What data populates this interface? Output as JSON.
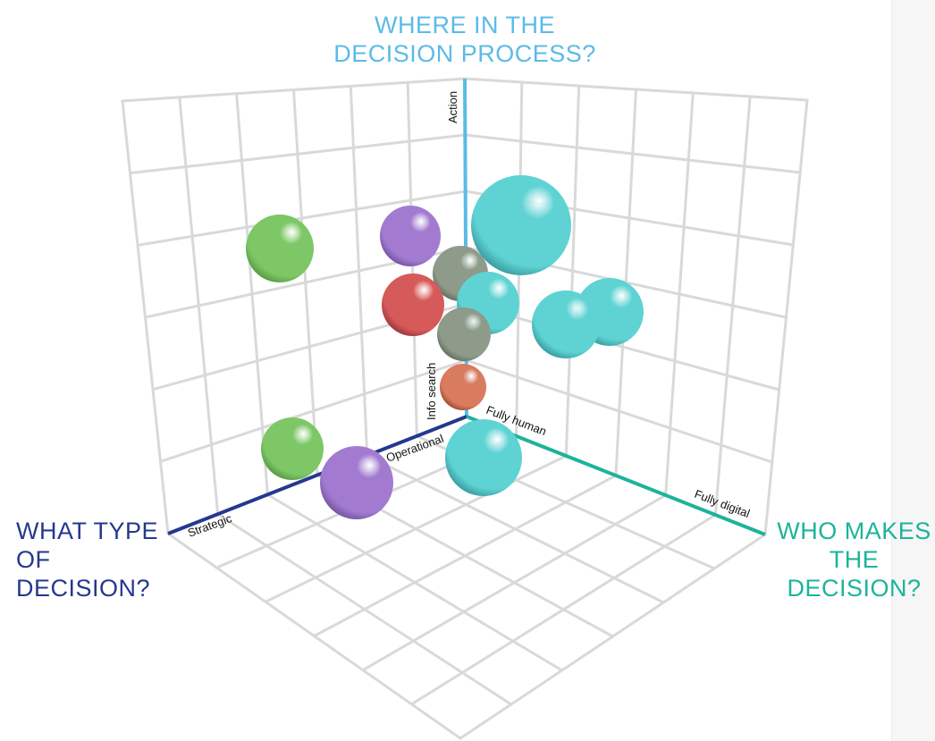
{
  "axis_titles": {
    "vertical": [
      "WHERE IN THE",
      "DECISION PROCESS?"
    ],
    "left": [
      "WHAT TYPE",
      "OF DECISION?"
    ],
    "right": [
      "WHO MAKES",
      "THE DECISION?"
    ]
  },
  "axis_labels": {
    "vertical_low": "Info search",
    "vertical_high": "Action",
    "left_near": "Operational",
    "left_far": "Strategic",
    "right_near": "Fully human",
    "right_far": "Fully digital"
  },
  "colors": {
    "vertical_axis": "#5bbbe6",
    "left_axis": "#24388f",
    "right_axis": "#1db39a",
    "title_vertical": "#5bbbe6",
    "title_left": "#24388f",
    "title_right": "#1db39a",
    "grid": "#d9d9d9"
  },
  "bubbles": [
    {
      "color": "#7dc766",
      "shade": "#4e8f3c"
    },
    {
      "color": "#a27bd1",
      "shade": "#6a4a94"
    },
    {
      "color": "#5fd3d3",
      "shade": "#2f8e93"
    },
    {
      "color": "#8e9a8a",
      "shade": "#5a6456"
    },
    {
      "color": "#d65a5a",
      "shade": "#8e2f33"
    },
    {
      "color": "#5fd3d3",
      "shade": "#2f8e93"
    },
    {
      "color": "#5fd3d3",
      "shade": "#2f8e93"
    },
    {
      "color": "#5fd3d3",
      "shade": "#2f8e93"
    },
    {
      "color": "#8e9a8a",
      "shade": "#5a6456"
    },
    {
      "color": "#d97b5e",
      "shade": "#933f2a"
    },
    {
      "color": "#7dc766",
      "shade": "#4e8f3c"
    },
    {
      "color": "#a27bd1",
      "shade": "#6a4a94"
    },
    {
      "color": "#5fd3d3",
      "shade": "#2f8e93"
    }
  ]
}
